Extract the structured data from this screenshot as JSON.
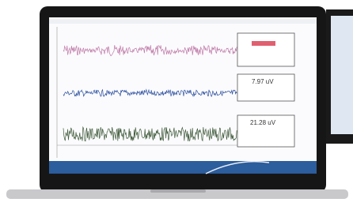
{
  "readouts": [
    {
      "label": "7.97 uV"
    },
    {
      "label": "21.28 uV"
    }
  ]
}
